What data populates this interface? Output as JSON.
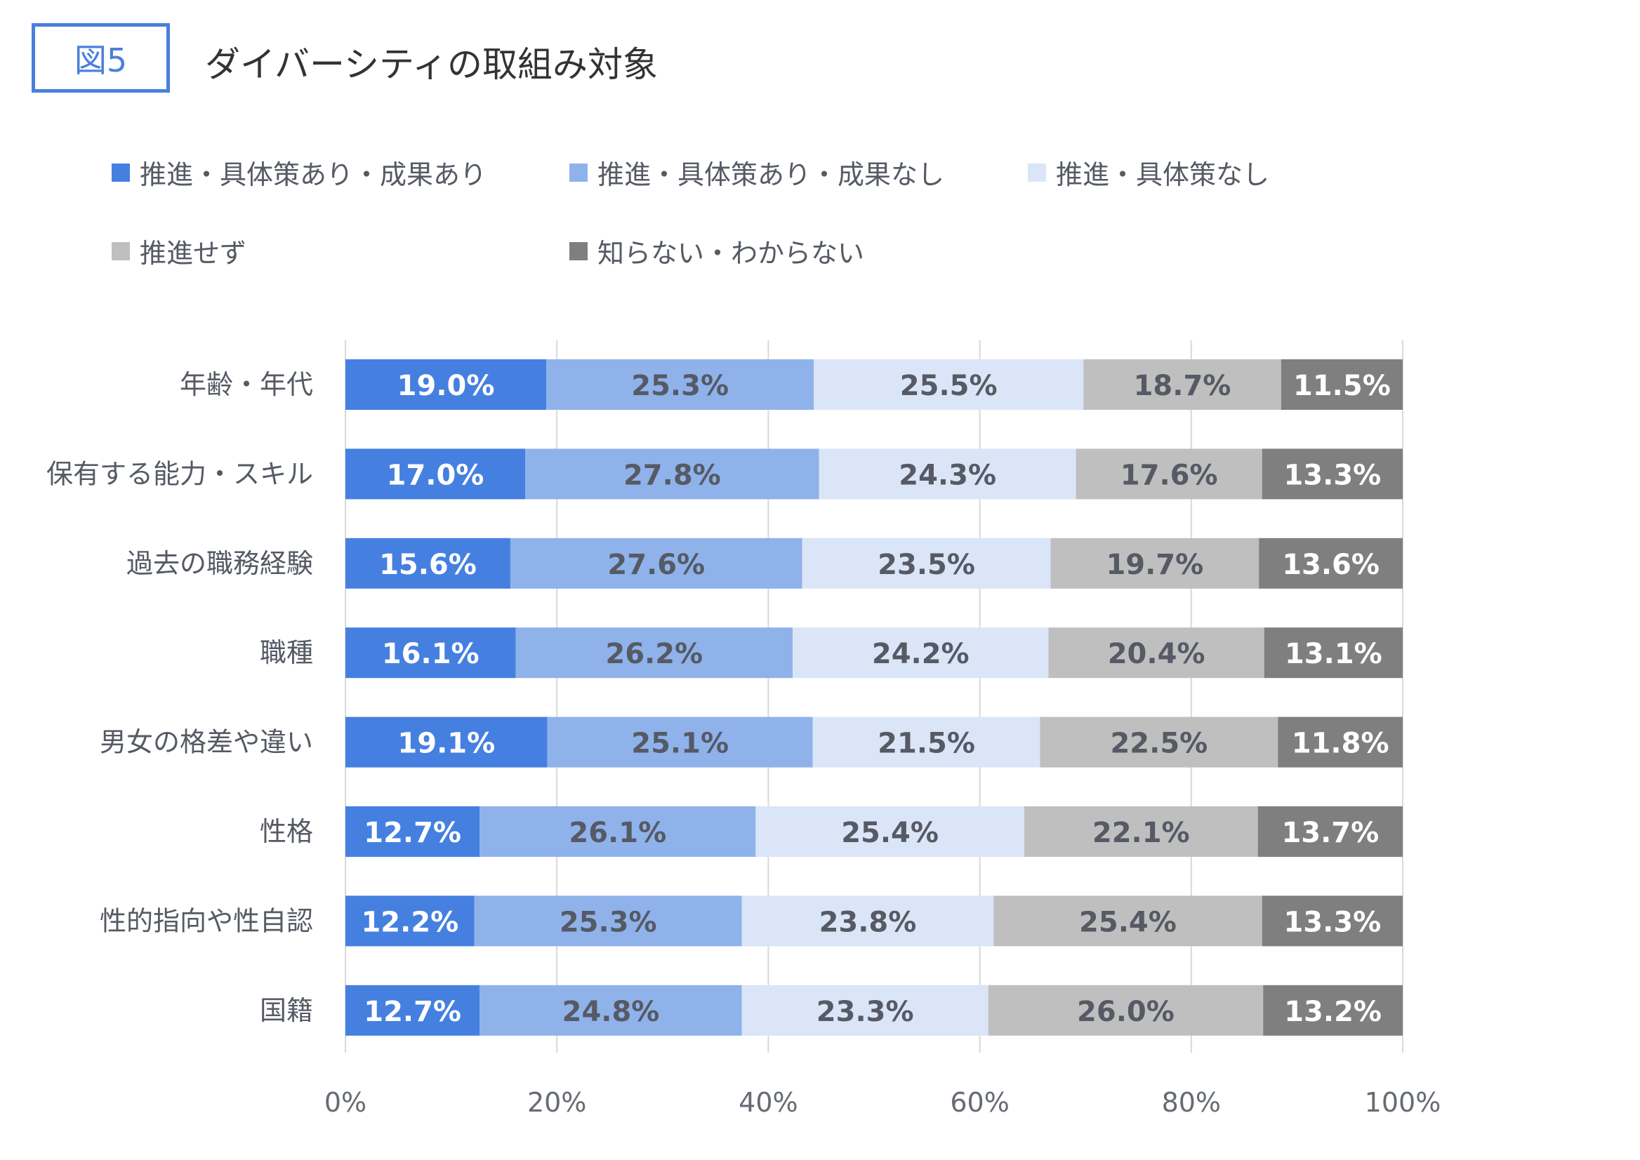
{
  "figure_label": "図5",
  "title": "ダイバーシティの取組み対象",
  "chart_data": {
    "type": "bar",
    "orientation": "horizontal",
    "stacked": "percent",
    "categories": [
      "年齢・年代",
      "保有する能力・スキル",
      "過去の職務経験",
      "職種",
      "男女の格差や違い",
      "性格",
      "性的指向や性自認",
      "国籍"
    ],
    "series": [
      {
        "name": "推進・具体策あり・成果あり",
        "color": "#4580e0",
        "label_color": "#ffffff",
        "values": [
          19.0,
          17.0,
          15.6,
          16.1,
          19.1,
          12.7,
          12.2,
          12.7
        ]
      },
      {
        "name": "推進・具体策あり・成果なし",
        "color": "#8fb2eb",
        "label_color": "#555a64",
        "values": [
          25.3,
          27.8,
          27.6,
          26.2,
          25.1,
          26.1,
          25.3,
          24.8
        ]
      },
      {
        "name": "推進・具体策なし",
        "color": "#dbe5f8",
        "label_color": "#555a64",
        "values": [
          25.5,
          24.3,
          23.5,
          24.2,
          21.5,
          25.4,
          23.8,
          23.3
        ]
      },
      {
        "name": "推進せず",
        "color": "#bfbfbf",
        "label_color": "#555a64",
        "values": [
          18.7,
          17.6,
          19.7,
          20.4,
          22.5,
          22.1,
          25.4,
          26.0
        ]
      },
      {
        "name": "知らない・わからない",
        "color": "#7f7f7f",
        "label_color": "#ffffff",
        "values": [
          11.5,
          13.3,
          13.6,
          13.1,
          11.8,
          13.7,
          13.3,
          13.2
        ]
      }
    ],
    "xticks": [
      "0%",
      "20%",
      "40%",
      "60%",
      "80%",
      "100%"
    ],
    "xlim": [
      0,
      100
    ],
    "grid": true,
    "legend": "top"
  }
}
